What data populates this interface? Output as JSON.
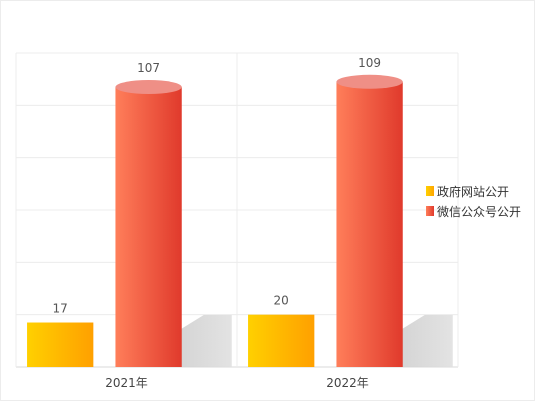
{
  "chart_data": {
    "type": "bar",
    "categories": [
      "2021年",
      "2022年"
    ],
    "series": [
      {
        "name": "政府网站公开",
        "values": [
          17,
          20
        ],
        "color": "#ffa500",
        "color_light": "#ffd000"
      },
      {
        "name": "微信公众号公开",
        "values": [
          107,
          109
        ],
        "color": "#e03a2c",
        "color_light": "#ff7e5a",
        "color_top": "#ef8f86"
      }
    ],
    "ylim": [
      0,
      120
    ],
    "grid": true,
    "legend_position": "right",
    "shadow": true
  }
}
